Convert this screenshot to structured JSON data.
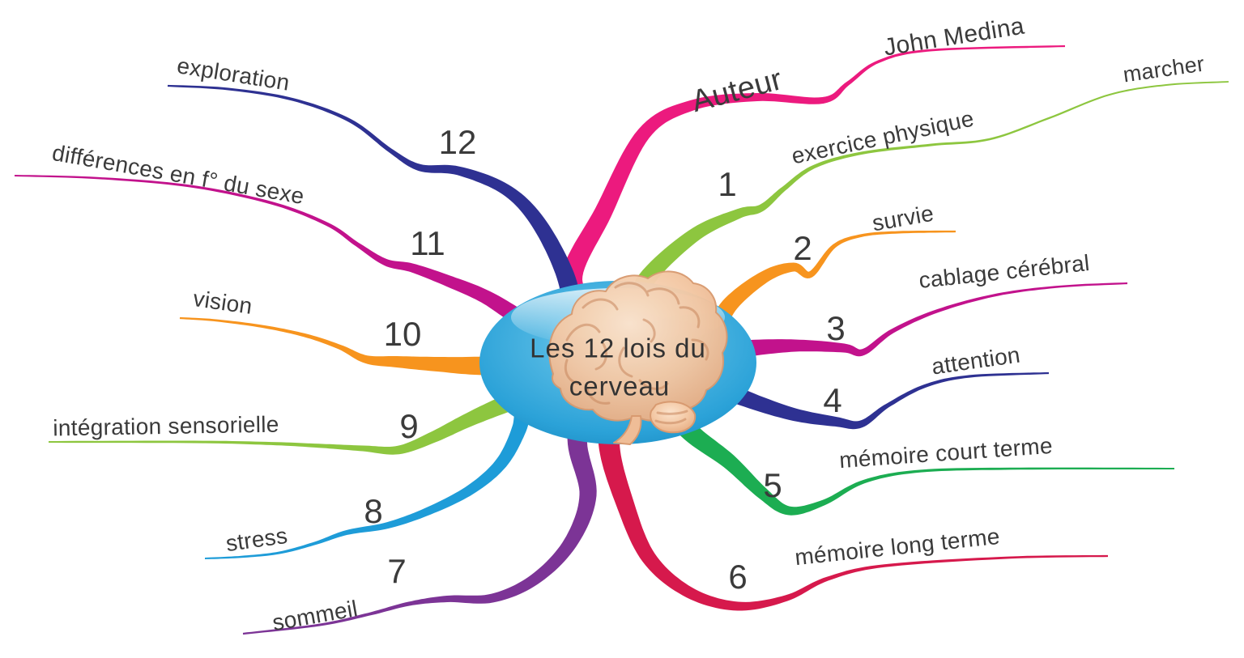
{
  "background": "#FFFFFF",
  "center": {
    "line1": "Les 12 lois du",
    "line2": "cerveau",
    "fill": "#2FA7DB",
    "icon": "brain-illustration"
  },
  "branches": [
    {
      "id": "auteur",
      "number": null,
      "label": "Auteur",
      "color": "#EC1A7E",
      "children": [
        "John Medina"
      ]
    },
    {
      "id": "exercice-physique",
      "number": "1",
      "label": "exercice physique",
      "color": "#8DC63F",
      "children": [
        "marcher"
      ]
    },
    {
      "id": "survie",
      "number": "2",
      "label": "survie",
      "color": "#F7941E",
      "children": []
    },
    {
      "id": "cablage-cerebral",
      "number": "3",
      "label": "cablage cérébral",
      "color": "#C2128C",
      "children": []
    },
    {
      "id": "attention",
      "number": "4",
      "label": "attention",
      "color": "#2E3192",
      "children": []
    },
    {
      "id": "memoire-court-terme",
      "number": "5",
      "label": "mémoire court terme",
      "color": "#1CAD52",
      "children": []
    },
    {
      "id": "memoire-long-terme",
      "number": "6",
      "label": "mémoire long terme",
      "color": "#D6194C",
      "children": []
    },
    {
      "id": "sommeil",
      "number": "7",
      "label": "sommeil",
      "color": "#7C3496",
      "children": []
    },
    {
      "id": "stress",
      "number": "8",
      "label": "stress",
      "color": "#1E9CD8",
      "children": []
    },
    {
      "id": "integration-sensorielle",
      "number": "9",
      "label": "intégration sensorielle",
      "color": "#8DC63F",
      "children": []
    },
    {
      "id": "vision",
      "number": "10",
      "label": "vision",
      "color": "#F7941E",
      "children": []
    },
    {
      "id": "differences-sexe",
      "number": "11",
      "label": "différences en f° du sexe",
      "color": "#C2128C",
      "children": []
    },
    {
      "id": "exploration",
      "number": "12",
      "label": "exploration",
      "color": "#2E3192",
      "children": []
    }
  ]
}
